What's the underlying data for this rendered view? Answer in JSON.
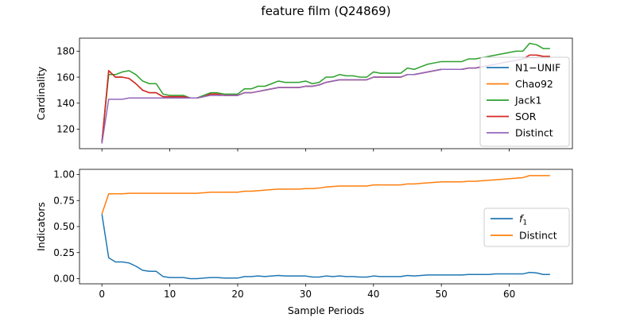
{
  "title": "feature film (Q24869)",
  "colors": {
    "blue": "#1f77b4",
    "orange": "#ff7f0e",
    "green": "#2ca02c",
    "red": "#d62728",
    "purple": "#9467bd"
  },
  "chart_data": [
    {
      "type": "line",
      "ylabel": "Cardinality",
      "xlim": [
        -3.3,
        69.3
      ],
      "ylim": [
        105,
        190
      ],
      "yticks": [
        120,
        140,
        160,
        180
      ],
      "xticks": [
        0,
        10,
        20,
        30,
        40,
        50,
        60
      ],
      "show_x_tick_labels": false,
      "legend_placement": "right",
      "series": [
        {
          "name": "N1−UNIF",
          "color": "#1f77b4",
          "values": [
            109,
            165,
            160,
            160,
            159,
            155,
            150,
            148,
            148,
            145,
            145,
            145,
            145,
            144,
            144,
            145,
            147,
            147,
            146,
            146,
            146,
            148,
            148,
            149,
            150,
            151,
            152,
            152,
            152,
            152,
            153,
            153,
            154,
            156,
            157,
            158,
            158,
            158,
            158,
            158,
            160,
            160,
            160,
            160,
            160,
            162,
            162,
            163,
            164,
            165,
            166,
            166,
            166,
            166,
            167,
            167,
            168,
            169,
            170,
            171,
            172,
            173,
            174,
            177,
            177,
            176,
            176
          ]
        },
        {
          "name": "Chao92",
          "color": "#ff7f0e",
          "values": [
            110,
            165,
            160,
            160,
            159,
            155,
            150,
            148,
            148,
            145,
            145,
            145,
            145,
            144,
            144,
            145,
            147,
            147,
            146,
            146,
            146,
            148,
            148,
            149,
            150,
            151,
            152,
            152,
            152,
            152,
            153,
            153,
            154,
            156,
            157,
            158,
            158,
            158,
            158,
            158,
            160,
            160,
            160,
            160,
            160,
            162,
            162,
            163,
            164,
            165,
            166,
            166,
            166,
            166,
            167,
            167,
            168,
            169,
            170,
            171,
            172,
            173,
            174,
            177,
            177,
            176,
            176
          ]
        },
        {
          "name": "Jack1",
          "color": "#2ca02c",
          "values": [
            110,
            162,
            162,
            164,
            165,
            162,
            157,
            155,
            155,
            147,
            146,
            146,
            146,
            144,
            144,
            146,
            148,
            148,
            147,
            147,
            147,
            151,
            151,
            153,
            153,
            155,
            157,
            156,
            156,
            156,
            157,
            155,
            156,
            160,
            160,
            162,
            161,
            161,
            160,
            160,
            164,
            163,
            163,
            163,
            163,
            167,
            166,
            168,
            170,
            171,
            172,
            172,
            172,
            172,
            174,
            174,
            175,
            176,
            177,
            178,
            179,
            180,
            180,
            186,
            185,
            182,
            182
          ]
        },
        {
          "name": "SOR",
          "color": "#d62728",
          "values": [
            110,
            165,
            160,
            160,
            159,
            155,
            150,
            148,
            148,
            145,
            145,
            145,
            145,
            144,
            144,
            145,
            147,
            147,
            146,
            146,
            146,
            148,
            148,
            149,
            150,
            151,
            152,
            152,
            152,
            152,
            153,
            153,
            154,
            156,
            157,
            158,
            158,
            158,
            158,
            158,
            160,
            160,
            160,
            160,
            160,
            162,
            162,
            163,
            164,
            165,
            166,
            166,
            166,
            166,
            167,
            167,
            168,
            169,
            170,
            171,
            172,
            173,
            174,
            177,
            177,
            176,
            176
          ]
        },
        {
          "name": "Distinct",
          "color": "#9467bd",
          "values": [
            109,
            143,
            143,
            143,
            144,
            144,
            144,
            144,
            144,
            144,
            144,
            144,
            144,
            144,
            144,
            145,
            146,
            146,
            146,
            146,
            146,
            148,
            148,
            149,
            150,
            151,
            152,
            152,
            152,
            152,
            153,
            153,
            154,
            156,
            157,
            158,
            158,
            158,
            158,
            158,
            160,
            160,
            160,
            160,
            160,
            162,
            162,
            163,
            164,
            165,
            166,
            166,
            166,
            166,
            167,
            167,
            168,
            169,
            170,
            171,
            172,
            173,
            174,
            175,
            175,
            175,
            175
          ]
        }
      ]
    },
    {
      "type": "line",
      "ylabel": "Indicators",
      "xlabel": "Sample Periods",
      "xlim": [
        -3.3,
        69.3
      ],
      "ylim": [
        -0.05,
        1.05
      ],
      "yticks": [
        0.0,
        0.25,
        0.5,
        0.75,
        1.0
      ],
      "yticklabels": [
        "0.00",
        "0.25",
        "0.50",
        "0.75",
        "1.00"
      ],
      "xticks": [
        0,
        10,
        20,
        30,
        40,
        50,
        60
      ],
      "xticklabels": [
        "0",
        "10",
        "20",
        "30",
        "40",
        "50",
        "60"
      ],
      "legend_placement": "center right",
      "series": [
        {
          "name": "f",
          "name_subscript": "1",
          "color": "#1f77b4",
          "values": [
            0.62,
            0.2,
            0.16,
            0.16,
            0.15,
            0.12,
            0.08,
            0.07,
            0.07,
            0.02,
            0.01,
            0.01,
            0.01,
            0.0,
            0.0,
            0.005,
            0.01,
            0.01,
            0.005,
            0.005,
            0.005,
            0.02,
            0.02,
            0.025,
            0.02,
            0.025,
            0.03,
            0.025,
            0.025,
            0.025,
            0.025,
            0.015,
            0.015,
            0.025,
            0.02,
            0.025,
            0.02,
            0.02,
            0.015,
            0.015,
            0.025,
            0.02,
            0.02,
            0.02,
            0.02,
            0.03,
            0.025,
            0.03,
            0.035,
            0.035,
            0.035,
            0.035,
            0.035,
            0.035,
            0.04,
            0.04,
            0.04,
            0.04,
            0.045,
            0.045,
            0.045,
            0.045,
            0.045,
            0.06,
            0.055,
            0.04,
            0.04
          ]
        },
        {
          "name": "Distinct",
          "color": "#ff7f0e",
          "values": [
            0.62,
            0.815,
            0.815,
            0.815,
            0.82,
            0.82,
            0.82,
            0.82,
            0.82,
            0.82,
            0.82,
            0.82,
            0.82,
            0.82,
            0.82,
            0.825,
            0.83,
            0.83,
            0.83,
            0.83,
            0.83,
            0.84,
            0.84,
            0.845,
            0.85,
            0.855,
            0.86,
            0.86,
            0.86,
            0.86,
            0.865,
            0.865,
            0.87,
            0.88,
            0.885,
            0.89,
            0.89,
            0.89,
            0.89,
            0.89,
            0.9,
            0.9,
            0.9,
            0.9,
            0.9,
            0.91,
            0.91,
            0.915,
            0.92,
            0.925,
            0.93,
            0.93,
            0.93,
            0.93,
            0.935,
            0.935,
            0.94,
            0.945,
            0.95,
            0.955,
            0.96,
            0.965,
            0.97,
            0.99,
            0.99,
            0.99,
            0.99
          ]
        }
      ]
    }
  ]
}
